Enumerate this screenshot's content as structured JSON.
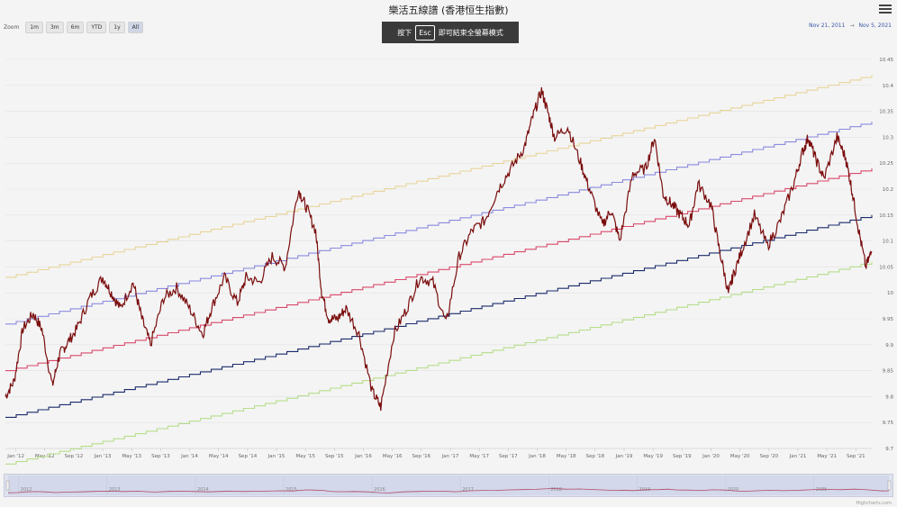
{
  "title": "樂活五線譜 (香港恒生指數)",
  "zoom": {
    "label": "Zoom",
    "buttons": [
      "1m",
      "3m",
      "6m",
      "YTD",
      "1y",
      "All"
    ],
    "selected": "All"
  },
  "range": {
    "from": "Nov 21, 2011",
    "sep": "→",
    "to": "Nov 5, 2021"
  },
  "banner": {
    "prefix": "按下",
    "key": "Esc",
    "suffix": "即可結束全螢幕模式"
  },
  "menu_icon": "hamburger-menu-icon",
  "credit": "Highcharts.com",
  "navigator_years": [
    "2012",
    "2013",
    "2014",
    "2015",
    "2016",
    "2017",
    "2018",
    "2019",
    "2020",
    "2021"
  ],
  "colors": {
    "price": "#7a0c0c",
    "band_top": "#e8d49a",
    "band_upper": "#8b8be0",
    "band_mid": "#d94a6a",
    "band_lower": "#1a2b6b",
    "band_bottom": "#b6dd8a"
  },
  "chart_data": {
    "type": "line",
    "yaxis_position": "right",
    "ylim": [
      9.7,
      10.45
    ],
    "y_ticks": [
      "10.45",
      "10.4",
      "10.35",
      "10.3",
      "10.25",
      "10.2",
      "10.15",
      "10.1",
      "10.05",
      "10",
      "9.95",
      "9.9",
      "9.85",
      "9.8",
      "9.75",
      "9.7"
    ],
    "x_ticks": [
      "Jan '12",
      "May '12",
      "Sep '12",
      "Jan '13",
      "May '13",
      "Sep '13",
      "Jan '14",
      "May '14",
      "Sep '14",
      "Jan '15",
      "May '15",
      "Sep '15",
      "Jan '16",
      "May '16",
      "Sep '16",
      "Jan '17",
      "May '17",
      "Sep '17",
      "Jan '18",
      "May '18",
      "Sep '18",
      "Jan '19",
      "May '19",
      "Sep '19",
      "Jan '20",
      "May '20",
      "Sep '20",
      "Jan '21",
      "May '21",
      "Sep '21"
    ],
    "x_range": [
      2011.88,
      2021.85
    ],
    "bands": [
      {
        "key": "band_top",
        "start": 10.03,
        "end": 10.42
      },
      {
        "key": "band_upper",
        "start": 9.94,
        "end": 10.33
      },
      {
        "key": "band_mid",
        "start": 9.85,
        "end": 10.24
      },
      {
        "key": "band_lower",
        "start": 9.76,
        "end": 10.15
      },
      {
        "key": "band_bottom",
        "start": 9.67,
        "end": 10.06
      }
    ],
    "series": [
      {
        "x": [
          2011.88,
          2011.98,
          2012.08,
          2012.2,
          2012.3,
          2012.42,
          2012.5,
          2012.58,
          2012.7,
          2012.85,
          2013.0,
          2013.1,
          2013.2,
          2013.35,
          2013.45,
          2013.55,
          2013.7,
          2013.85,
          2014.0,
          2014.15,
          2014.25,
          2014.4,
          2014.55,
          2014.65,
          2014.8,
          2014.95,
          2015.1,
          2015.25,
          2015.33,
          2015.45,
          2015.52,
          2015.6,
          2015.7,
          2015.8,
          2015.95,
          2016.1,
          2016.2,
          2016.35,
          2016.5,
          2016.65,
          2016.8,
          2016.95,
          2017.1,
          2017.25,
          2017.4,
          2017.55,
          2017.7,
          2017.85,
          2017.95,
          2018.05,
          2018.12,
          2018.2,
          2018.35,
          2018.5,
          2018.6,
          2018.75,
          2018.85,
          2018.95,
          2019.1,
          2019.25,
          2019.35,
          2019.45,
          2019.55,
          2019.65,
          2019.75,
          2019.85,
          2020.0,
          2020.1,
          2020.2,
          2020.25,
          2020.35,
          2020.5,
          2020.65,
          2020.8,
          2020.95,
          2021.05,
          2021.12,
          2021.2,
          2021.3,
          2021.45,
          2021.55,
          2021.62,
          2021.7,
          2021.78,
          2021.85
        ],
        "y": [
          9.8,
          9.83,
          9.93,
          9.96,
          9.93,
          9.82,
          9.88,
          9.9,
          9.93,
          9.99,
          10.03,
          10.0,
          9.97,
          10.02,
          9.95,
          9.9,
          9.99,
          10.01,
          9.97,
          9.92,
          9.97,
          10.03,
          9.98,
          10.03,
          10.02,
          10.07,
          10.05,
          10.2,
          10.17,
          10.12,
          10.0,
          9.95,
          9.95,
          9.97,
          9.92,
          9.81,
          9.78,
          9.92,
          9.97,
          10.03,
          10.02,
          9.94,
          10.07,
          10.12,
          10.14,
          10.2,
          10.24,
          10.28,
          10.34,
          10.39,
          10.35,
          10.3,
          10.32,
          10.25,
          10.2,
          10.13,
          10.16,
          10.1,
          10.23,
          10.24,
          10.3,
          10.19,
          10.17,
          10.15,
          10.13,
          10.21,
          10.17,
          10.08,
          10.0,
          10.03,
          10.08,
          10.15,
          10.09,
          10.14,
          10.21,
          10.27,
          10.3,
          10.26,
          10.22,
          10.3,
          10.26,
          10.2,
          10.12,
          10.05,
          10.08
        ]
      }
    ]
  }
}
